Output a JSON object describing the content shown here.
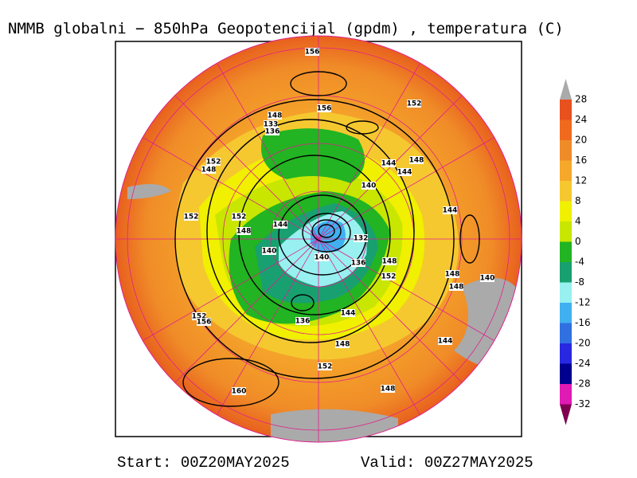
{
  "map": {
    "title": "NMMB globalni − 850hPa Geopotencijal (gpdm) , temperatura (C)",
    "contour_labels": [
      156,
      156,
      152,
      148,
      133,
      136,
      152,
      148,
      144,
      144,
      148,
      140,
      144,
      152,
      152,
      148,
      144,
      132,
      140,
      140,
      136,
      148,
      152,
      148,
      148,
      140,
      152,
      156,
      136,
      144,
      148,
      144,
      152,
      160,
      148
    ],
    "colorbar": {
      "ticks": [
        28,
        24,
        20,
        16,
        12,
        8,
        4,
        0,
        -4,
        -8,
        -12,
        -16,
        -20,
        -24,
        -28,
        -32
      ],
      "colors": [
        "#e8501e",
        "#f06a1e",
        "#f08c28",
        "#f5a82a",
        "#f5c830",
        "#f0f000",
        "#c8e600",
        "#22b422",
        "#18a070",
        "#98f0f0",
        "#40b0f0",
        "#3070e0",
        "#2828e0",
        "#000090",
        "#e01ab4"
      ],
      "over_color": "#aaaaaa",
      "under_color": "#800050"
    },
    "footer": {
      "start": "Start: 00Z20MAY2025",
      "valid": "Valid: 00Z27MAY2025"
    }
  }
}
